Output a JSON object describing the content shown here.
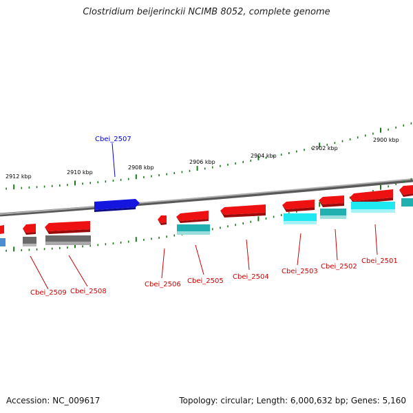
{
  "title": "Clostridium beijerinckii NCIMB 8052, complete genome",
  "footer": {
    "accession": "Accession: NC_009617",
    "topology": "Topology: circular; Length: 6,000,632 bp; Genes: 5,160"
  },
  "colors": {
    "backbone": "#8c8c8c",
    "tick": "#1a7a1a",
    "forward_gene": "#1010dd",
    "reverse_gene": "#ee1111",
    "cds_cyan": "#20c8c8",
    "cds_gray": "#6a6a6a",
    "cds_blue": "#4a8ed0",
    "label_forward": "#0000cc",
    "label_reverse": "#cc0000"
  },
  "scale": {
    "unit": "kbp",
    "labels": [
      "2912 kbp",
      "2910 kbp",
      "2908 kbp",
      "2906 kbp",
      "2904 kbp",
      "2902 kbp",
      "2900 kbp"
    ]
  },
  "genes": [
    {
      "name": "Cbei_2509",
      "strand": "reverse",
      "has_cds": true,
      "cds_color": "gray"
    },
    {
      "name": "Cbei_2508",
      "strand": "reverse",
      "has_cds": true,
      "cds_color": "gray"
    },
    {
      "name": "Cbei_2507",
      "strand": "forward",
      "has_cds": false
    },
    {
      "name": "Cbei_2506",
      "strand": "reverse",
      "has_cds": false
    },
    {
      "name": "Cbei_2505",
      "strand": "reverse",
      "has_cds": true,
      "cds_color": "cyan"
    },
    {
      "name": "Cbei_2504",
      "strand": "reverse",
      "has_cds": false
    },
    {
      "name": "Cbei_2503",
      "strand": "reverse",
      "has_cds": true,
      "cds_color": "cyan"
    },
    {
      "name": "Cbei_2502",
      "strand": "reverse",
      "has_cds": true,
      "cds_color": "cyan"
    },
    {
      "name": "Cbei_2501",
      "strand": "reverse",
      "has_cds": true,
      "cds_color": "cyan"
    }
  ]
}
